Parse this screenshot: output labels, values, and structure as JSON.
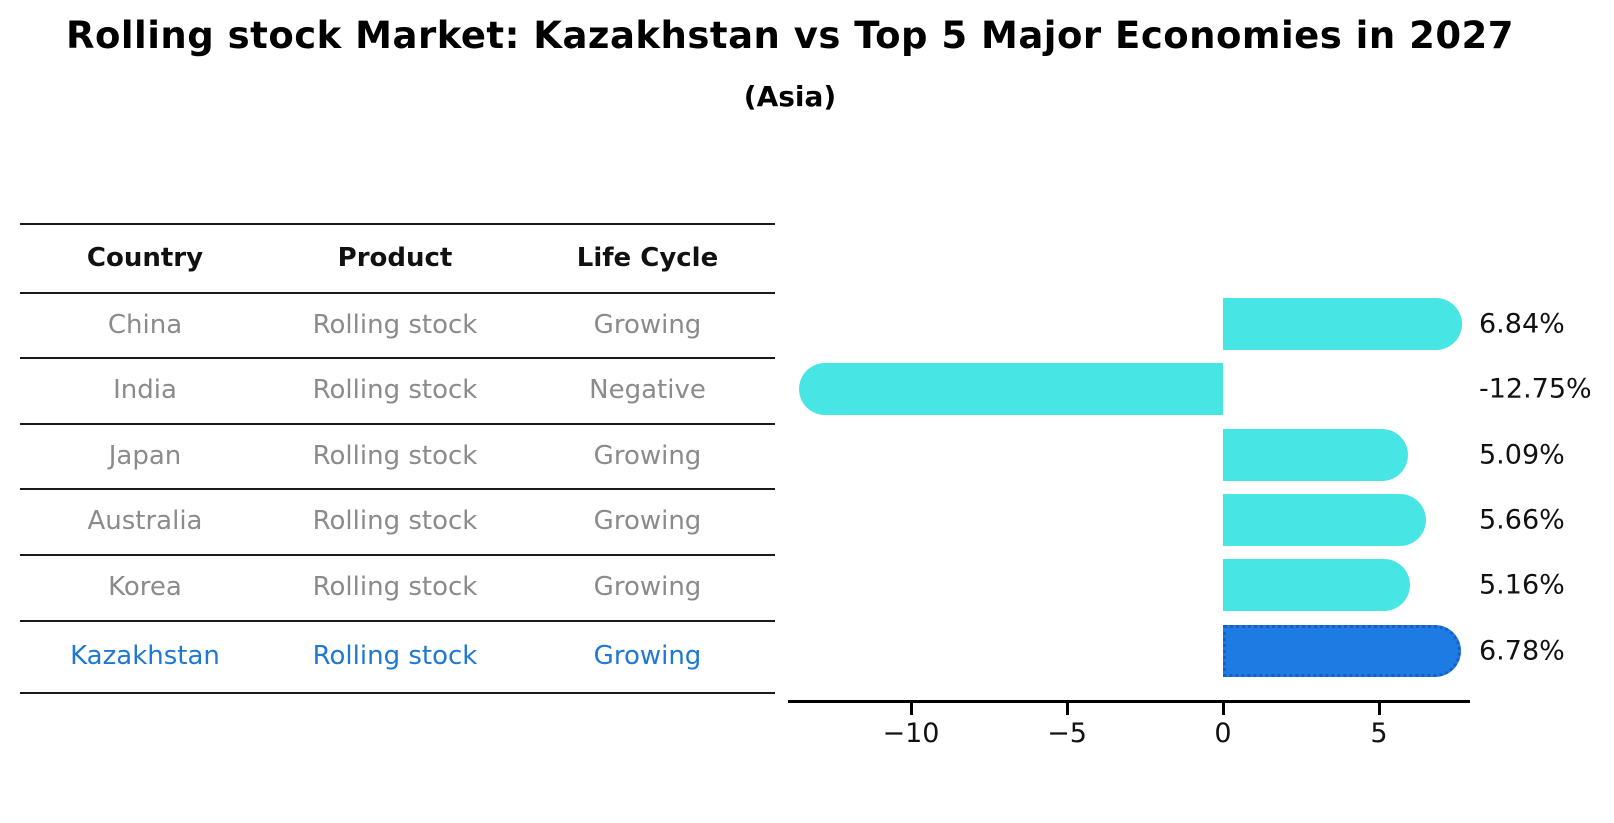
{
  "title": "Rolling stock Market: Kazakhstan vs Top 5 Major Economies in 2027",
  "subtitle": "(Asia)",
  "table": {
    "headers": [
      "Country",
      "Product",
      "Life Cycle"
    ],
    "rows": [
      {
        "country": "China",
        "product": "Rolling stock",
        "life_cycle": "Growing",
        "highlight": false
      },
      {
        "country": "India",
        "product": "Rolling stock",
        "life_cycle": "Negative",
        "highlight": false
      },
      {
        "country": "Japan",
        "product": "Rolling stock",
        "life_cycle": "Growing",
        "highlight": false
      },
      {
        "country": "Australia",
        "product": "Rolling stock",
        "life_cycle": "Growing",
        "highlight": false
      },
      {
        "country": "Korea",
        "product": "Rolling stock",
        "life_cycle": "Growing",
        "highlight": false
      },
      {
        "country": "Kazakhstan",
        "product": "Rolling stock",
        "life_cycle": "Growing",
        "highlight": true
      }
    ]
  },
  "chart_data": {
    "type": "bar",
    "orientation": "horizontal",
    "categories": [
      "China",
      "India",
      "Japan",
      "Australia",
      "Korea",
      "Kazakhstan"
    ],
    "values": [
      6.84,
      -12.75,
      5.09,
      5.66,
      5.16,
      6.78
    ],
    "value_labels": [
      "6.84%",
      "-12.75%",
      "5.09%",
      "5.66%",
      "5.16%",
      "6.78%"
    ],
    "x_ticks": [
      -10,
      -5,
      0,
      5
    ],
    "x_tick_labels": [
      "−10",
      "−5",
      "0",
      "5"
    ],
    "xlim": [
      -13.9,
      7.9
    ],
    "grid": false,
    "legend": false,
    "highlight_category": "Kazakhstan",
    "bar_color": "#48E5E5",
    "highlight_bar_color": "#1E7BE3",
    "highlight_border_color": "#1560C0"
  },
  "colors": {
    "row_text": "#8B8B8B",
    "highlight_text": "#1F78D1",
    "header_text": "#111111"
  }
}
